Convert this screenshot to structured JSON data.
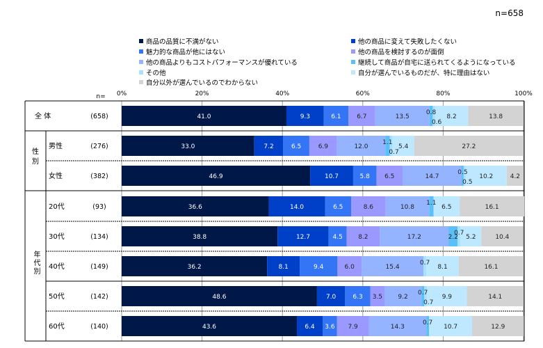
{
  "chart_data": {
    "type": "bar",
    "orientation": "horizontal-stacked-100",
    "sample_note": "n=658",
    "n_header": "n=",
    "xlim": [
      0,
      100
    ],
    "xticks": [
      "0%",
      "20%",
      "40%",
      "60%",
      "80%",
      "100%"
    ],
    "series": [
      {
        "name": "商品の品質に不満がない",
        "color": "#001848"
      },
      {
        "name": "他の商品に変えて失敗したくない",
        "color": "#0040c8"
      },
      {
        "name": "魅力的な商品が他にはない",
        "color": "#3375f5"
      },
      {
        "name": "他の商品を検討するのが面倒",
        "color": "#9999ff"
      },
      {
        "name": "他の商品よりもコストパフォーマンスが優れている",
        "color": "#94b4ff"
      },
      {
        "name": "継続して商品が自宅に送られてくるようになっている",
        "color": "#5bc0f8"
      },
      {
        "name": "その他",
        "color": "#a8e0ff"
      },
      {
        "name": "自分が選んでいるものだが、特に理由はない",
        "color": "#bde8ff"
      },
      {
        "name": "自分以外が選んでいるのでわからない",
        "color": "#d3d3d3"
      }
    ],
    "groups": [
      {
        "label": "全 体",
        "rows": [
          0
        ]
      },
      {
        "label": "性別",
        "rows": [
          1,
          2
        ]
      },
      {
        "label": "年代別",
        "rows": [
          3,
          4,
          5,
          6,
          7
        ]
      }
    ],
    "rows": [
      {
        "label": "",
        "n": "(658)",
        "values": [
          41.0,
          9.3,
          6.1,
          6.7,
          13.5,
          0.8,
          0.6,
          8.2,
          13.8
        ]
      },
      {
        "label": "男性",
        "n": "(276)",
        "values": [
          33.0,
          7.2,
          6.5,
          6.9,
          12.0,
          1.1,
          0.7,
          5.4,
          27.2
        ]
      },
      {
        "label": "女性",
        "n": "(382)",
        "values": [
          46.9,
          10.7,
          5.8,
          6.5,
          14.7,
          0.5,
          0.5,
          10.2,
          4.2
        ]
      },
      {
        "label": "20代",
        "n": "(93)",
        "values": [
          36.6,
          14.0,
          6.5,
          8.6,
          10.8,
          1.1,
          0,
          6.5,
          16.1
        ]
      },
      {
        "label": "30代",
        "n": "(134)",
        "values": [
          38.8,
          12.7,
          4.5,
          8.2,
          17.2,
          2.2,
          0.7,
          5.2,
          10.4
        ]
      },
      {
        "label": "40代",
        "n": "(149)",
        "values": [
          36.2,
          8.1,
          9.4,
          6.0,
          15.4,
          0,
          0.7,
          8.1,
          16.1
        ]
      },
      {
        "label": "50代",
        "n": "(142)",
        "values": [
          48.6,
          7.0,
          6.3,
          3.5,
          9.2,
          0.7,
          0.7,
          9.9,
          14.1
        ]
      },
      {
        "label": "60代",
        "n": "(140)",
        "values": [
          43.6,
          6.4,
          3.6,
          7.9,
          14.3,
          0.7,
          0,
          10.7,
          12.9
        ]
      }
    ]
  }
}
